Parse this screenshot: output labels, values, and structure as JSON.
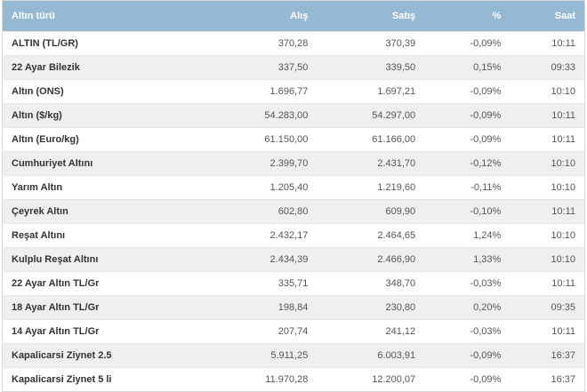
{
  "table": {
    "columns": [
      "Altın türü",
      "Alış",
      "Satış",
      "%",
      "Saat"
    ],
    "rows": [
      [
        "ALTIN (TL/GR)",
        "370,28",
        "370,39",
        "-0,09%",
        "10:11"
      ],
      [
        "22 Ayar Bilezik",
        "337,50",
        "339,50",
        "0,15%",
        "09:33"
      ],
      [
        "Altın (ONS)",
        "1.696,77",
        "1.697,21",
        "-0,09%",
        "10:10"
      ],
      [
        "Altın ($/kg)",
        "54.283,00",
        "54.297,00",
        "-0,09%",
        "10:11"
      ],
      [
        "Altın (Euro/kg)",
        "61.150,00",
        "61.166,00",
        "-0,09%",
        "10:11"
      ],
      [
        "Cumhuriyet Altını",
        "2.399,70",
        "2.431,70",
        "-0,12%",
        "10:10"
      ],
      [
        "Yarım Altın",
        "1.205,40",
        "1.219,60",
        "-0,11%",
        "10:10"
      ],
      [
        "Çeyrek Altın",
        "602,80",
        "609,90",
        "-0,10%",
        "10:11"
      ],
      [
        "Reşat Altını",
        "2.432,17",
        "2.464,65",
        "1,24%",
        "10:10"
      ],
      [
        "Kulplu Reşat Altını",
        "2.434,39",
        "2.466,90",
        "1,33%",
        "10:10"
      ],
      [
        "22 Ayar Altın TL/Gr",
        "335,71",
        "348,70",
        "-0,03%",
        "10:11"
      ],
      [
        "18 Ayar Altın TL/Gr",
        "198,84",
        "230,80",
        "0,20%",
        "09:35"
      ],
      [
        "14 Ayar Altın TL/Gr",
        "207,74",
        "241,12",
        "-0,03%",
        "10:11"
      ],
      [
        "Kapalicarsi Ziynet 2.5",
        "5.911,25",
        "6.003,91",
        "-0,09%",
        "16:37"
      ],
      [
        "Kapalicarsi Ziynet 5 li",
        "11.970,28",
        "12.200,07",
        "-0,09%",
        "16:37"
      ]
    ]
  }
}
